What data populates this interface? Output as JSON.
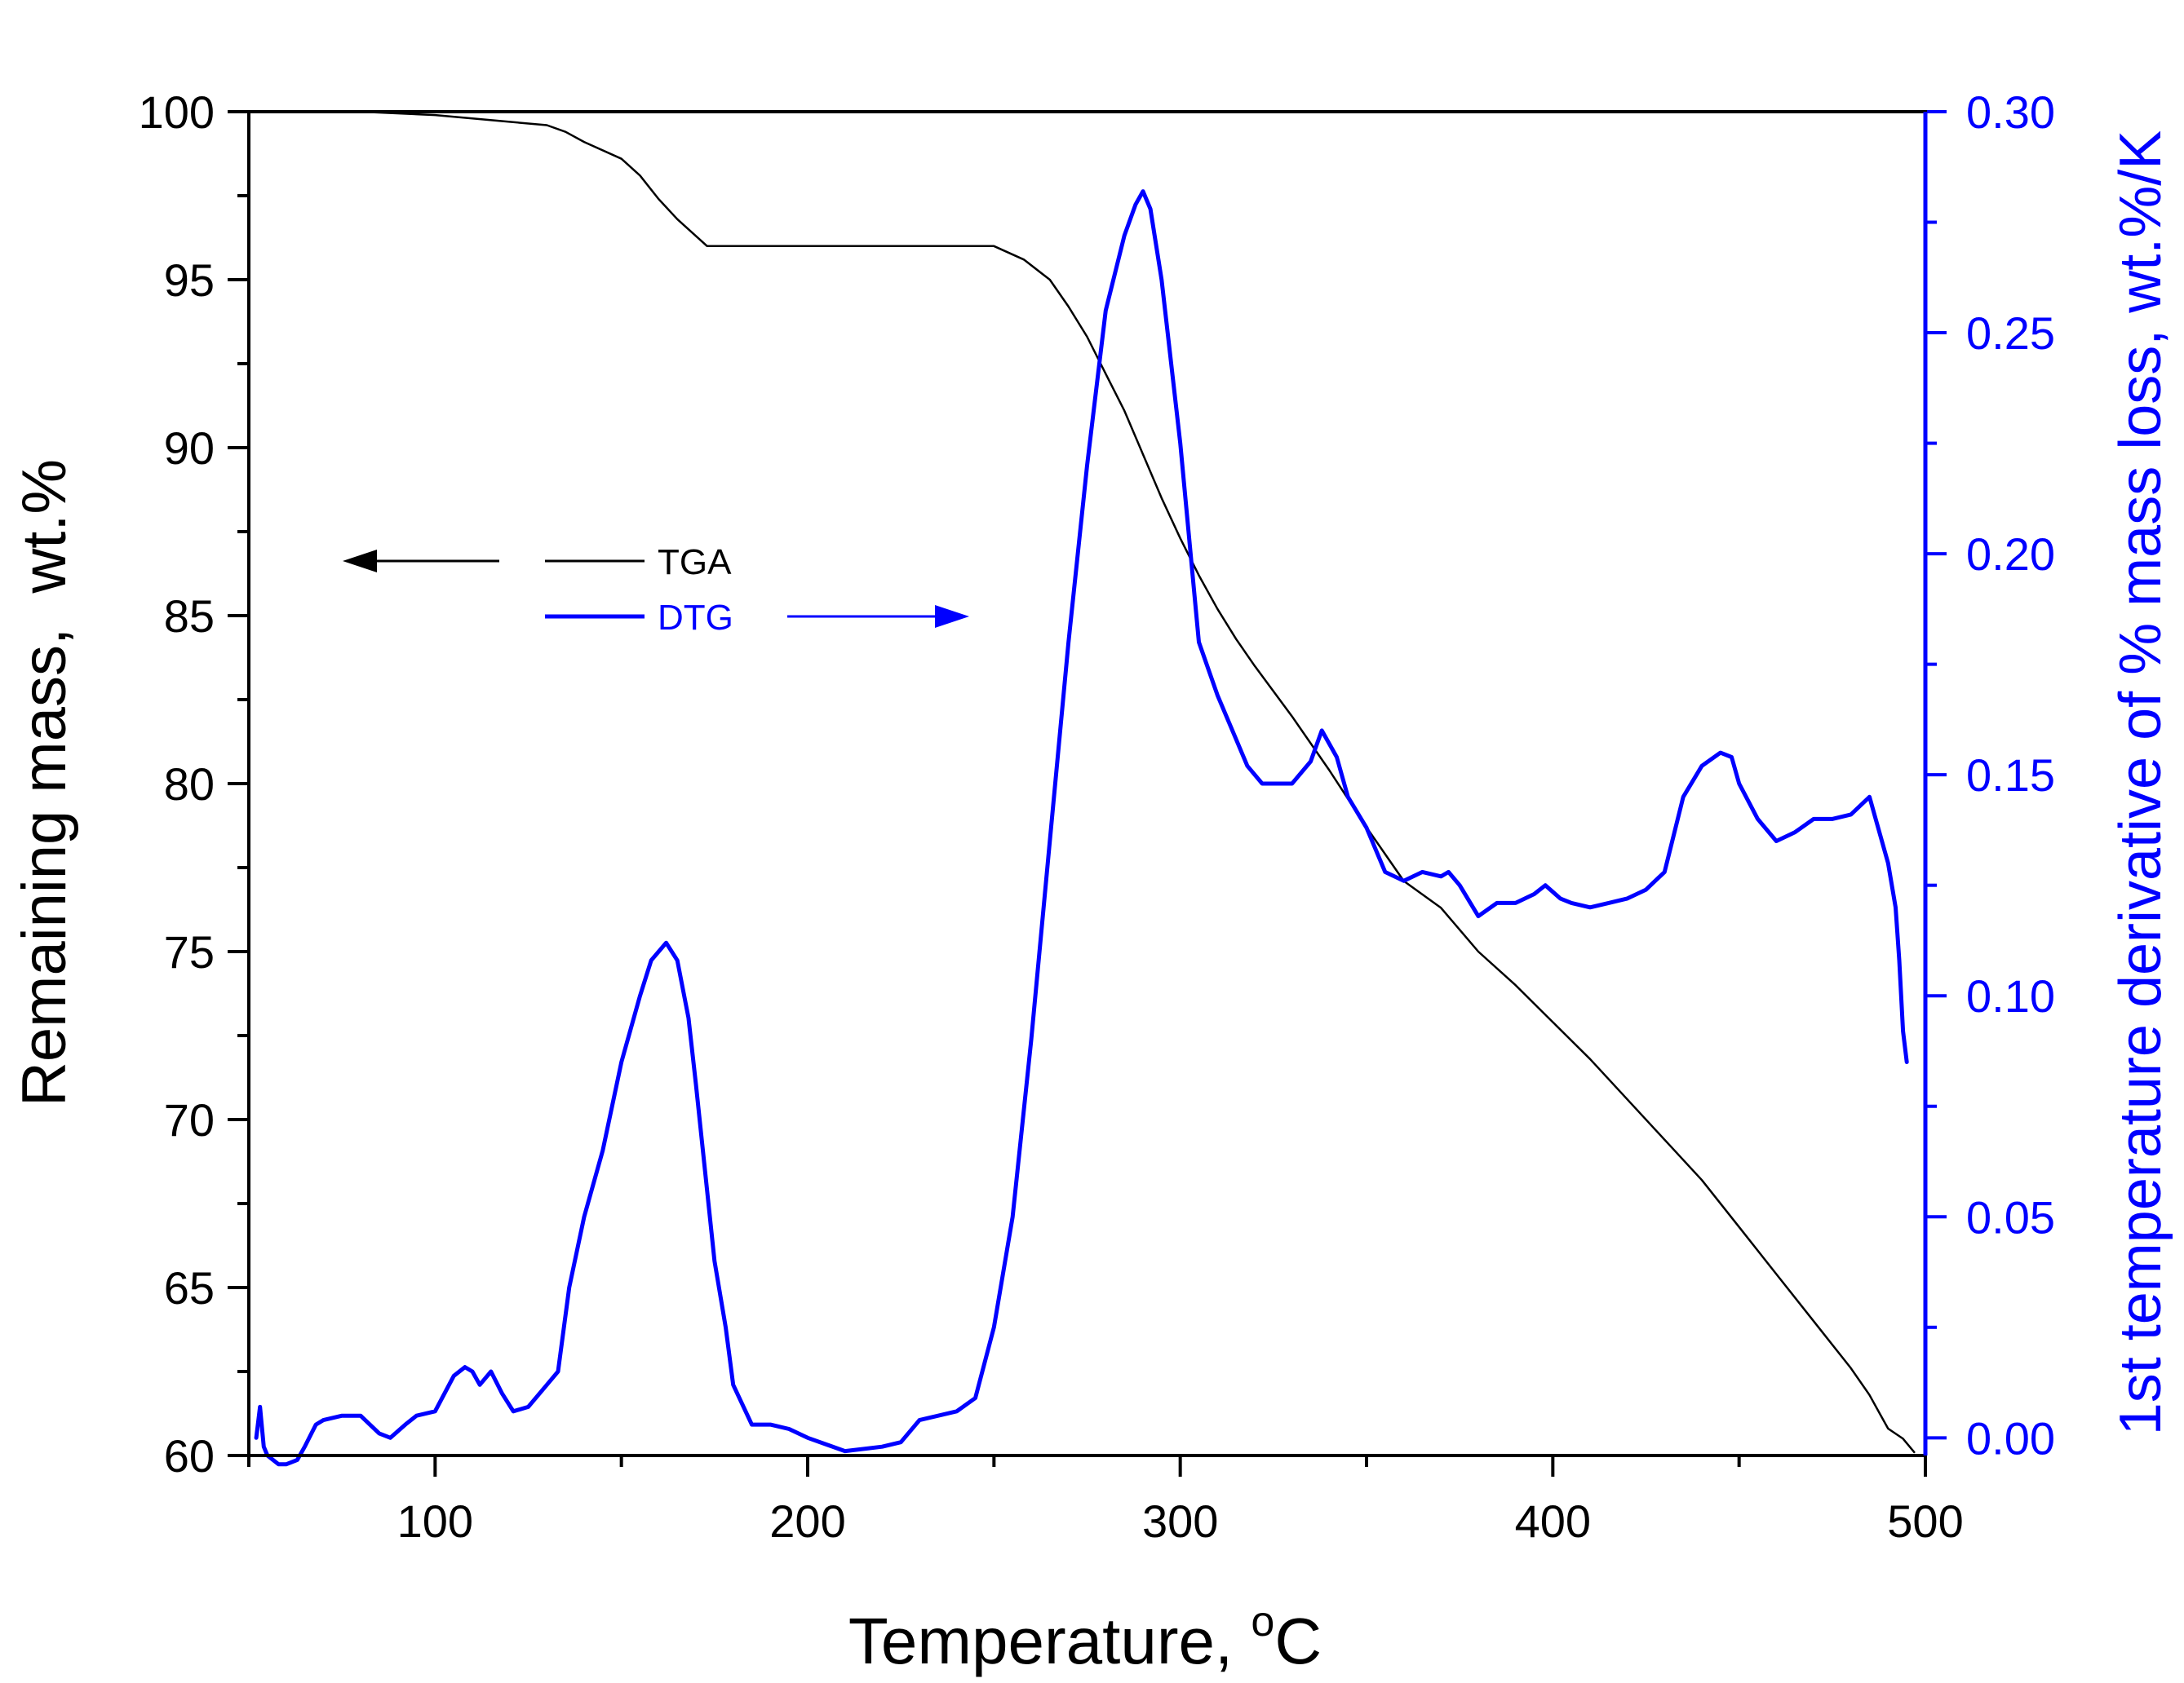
{
  "chart_data": {
    "type": "line",
    "title": "",
    "xlabel": "Temperature, °C",
    "xlabel_main": "Temperature, ",
    "xlabel_sup": "o",
    "xlabel_unit": "C",
    "ylabel": "Remaining mass,  wt.%",
    "y2label": "1st temperature derivative of % mass loss, wt.%/K",
    "xlim": [
      50,
      500
    ],
    "ylim": [
      60,
      100
    ],
    "y2lim": [
      -0.004,
      0.3
    ],
    "x_ticks": [
      100,
      200,
      300,
      400,
      500
    ],
    "y_ticks": [
      60,
      65,
      70,
      75,
      80,
      85,
      90,
      95,
      100
    ],
    "y2_ticks": [
      "0.00",
      "0.05",
      "0.10",
      "0.15",
      "0.20",
      "0.25",
      "0.30"
    ],
    "grid": false,
    "legend": {
      "position": "upper-left",
      "entries": [
        {
          "name": "TGA",
          "color": "#000000",
          "arrow": "left"
        },
        {
          "name": "DTG",
          "color": "#0000ff",
          "arrow": "right"
        }
      ]
    },
    "series": [
      {
        "name": "TGA",
        "axis": "left",
        "color": "#000000",
        "x": [
          50,
          60,
          80,
          100,
          120,
          130,
          135,
          140,
          150,
          155,
          160,
          165,
          170,
          173,
          180,
          200,
          220,
          240,
          250,
          258,
          265,
          270,
          275,
          280,
          285,
          290,
          295,
          300,
          305,
          310,
          315,
          320,
          330,
          340,
          350,
          360,
          370,
          380,
          390,
          400,
          410,
          420,
          430,
          440,
          450,
          460,
          470,
          480,
          485,
          488,
          490,
          494,
          497
        ],
        "y": [
          100,
          100,
          100,
          99.9,
          99.7,
          99.6,
          99.4,
          99.1,
          98.6,
          98.1,
          97.4,
          96.8,
          96.3,
          96.0,
          96.0,
          96.0,
          96.0,
          96.0,
          96.0,
          95.6,
          95.0,
          94.2,
          93.3,
          92.2,
          91.1,
          89.8,
          88.5,
          87.3,
          86.2,
          85.2,
          84.3,
          83.5,
          82.0,
          80.4,
          78.7,
          77.1,
          76.3,
          75.0,
          74.0,
          72.9,
          71.8,
          70.6,
          69.4,
          68.2,
          66.8,
          65.4,
          64.0,
          62.6,
          61.8,
          61.2,
          60.8,
          60.5,
          60.1
        ]
      },
      {
        "name": "DTG",
        "axis": "right",
        "color": "#0000ff",
        "x": [
          52,
          53,
          54,
          55,
          58,
          60,
          63,
          65,
          68,
          70,
          75,
          80,
          85,
          88,
          92,
          95,
          100,
          105,
          108,
          110,
          112,
          115,
          118,
          121,
          125,
          130,
          133,
          136,
          140,
          145,
          150,
          155,
          158,
          162,
          165,
          168,
          170,
          175,
          178,
          180,
          185,
          190,
          195,
          200,
          210,
          220,
          225,
          230,
          240,
          245,
          250,
          255,
          260,
          265,
          270,
          275,
          280,
          285,
          288,
          290,
          292,
          295,
          300,
          305,
          310,
          315,
          318,
          322,
          325,
          330,
          335,
          338,
          342,
          345,
          350,
          355,
          360,
          365,
          370,
          372,
          375,
          380,
          385,
          390,
          395,
          398,
          402,
          405,
          410,
          415,
          420,
          425,
          430,
          435,
          440,
          445,
          448,
          450,
          455,
          460,
          465,
          470,
          475,
          480,
          485,
          487,
          490,
          492,
          493,
          494,
          495
        ],
        "y": [
          0.0,
          0.007,
          -0.002,
          -0.004,
          -0.006,
          -0.006,
          -0.005,
          -0.002,
          0.003,
          0.004,
          0.005,
          0.005,
          0.001,
          0.0,
          0.003,
          0.005,
          0.006,
          0.014,
          0.016,
          0.015,
          0.012,
          0.015,
          0.01,
          0.006,
          0.007,
          0.012,
          0.015,
          0.034,
          0.05,
          0.065,
          0.085,
          0.1,
          0.108,
          0.112,
          0.108,
          0.095,
          0.08,
          0.04,
          0.025,
          0.012,
          0.003,
          0.003,
          0.002,
          0.0,
          -0.003,
          -0.002,
          -0.001,
          0.004,
          0.006,
          0.009,
          0.025,
          0.05,
          0.09,
          0.135,
          0.18,
          0.22,
          0.255,
          0.272,
          0.279,
          0.282,
          0.278,
          0.262,
          0.225,
          0.18,
          0.168,
          0.158,
          0.152,
          0.148,
          0.148,
          0.148,
          0.153,
          0.16,
          0.154,
          0.145,
          0.138,
          0.128,
          0.126,
          0.128,
          0.127,
          0.128,
          0.125,
          0.118,
          0.121,
          0.121,
          0.123,
          0.125,
          0.122,
          0.121,
          0.12,
          0.121,
          0.122,
          0.124,
          0.128,
          0.145,
          0.152,
          0.155,
          0.154,
          0.148,
          0.14,
          0.135,
          0.137,
          0.14,
          0.14,
          0.141,
          0.145,
          0.139,
          0.13,
          0.12,
          0.108,
          0.092,
          0.085
        ]
      }
    ]
  }
}
